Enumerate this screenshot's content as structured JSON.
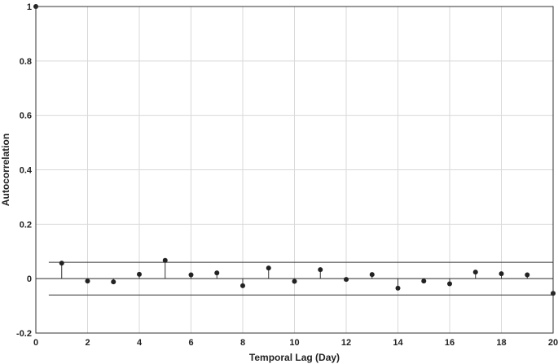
{
  "chart_data": {
    "type": "stem",
    "title": "",
    "xlabel": "Temporal Lag (Day)",
    "ylabel": "Autocorrelation",
    "xlim": [
      0,
      20
    ],
    "ylim": [
      -0.2,
      1
    ],
    "grid": true,
    "xticks": [
      0,
      2,
      4,
      6,
      8,
      10,
      12,
      14,
      16,
      18,
      20
    ],
    "yticks": [
      -0.2,
      0,
      0.2,
      0.4,
      0.6,
      0.8,
      1
    ],
    "xtick_labels": [
      "0",
      "2",
      "4",
      "6",
      "8",
      "10",
      "12",
      "14",
      "16",
      "18",
      "20"
    ],
    "ytick_labels": [
      "-0.2",
      "0",
      "0.2",
      "0.4",
      "0.6",
      "0.8",
      "1"
    ],
    "x": [
      0,
      1,
      2,
      3,
      4,
      5,
      6,
      7,
      8,
      9,
      10,
      11,
      12,
      13,
      14,
      15,
      16,
      17,
      18,
      19,
      20
    ],
    "values": [
      1,
      0.057,
      -0.009,
      -0.012,
      0.016,
      0.067,
      0.014,
      0.021,
      -0.026,
      0.039,
      -0.01,
      0.033,
      -0.003,
      0.015,
      -0.035,
      -0.009,
      -0.019,
      0.024,
      0.018,
      0.014,
      -0.054
    ],
    "confidence_bounds": {
      "upper": 0.06,
      "lower": -0.06,
      "x_range": [
        0.5,
        20
      ]
    }
  }
}
